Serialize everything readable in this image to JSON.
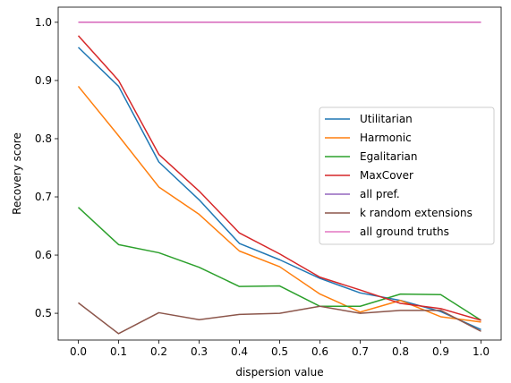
{
  "chart_data": {
    "type": "line",
    "xlabel": "dispersion value",
    "ylabel": "Recovery score",
    "xlim": [
      -0.05,
      1.05
    ],
    "ylim": [
      0.454,
      1.026
    ],
    "x_ticks": [
      "0.0",
      "0.1",
      "0.2",
      "0.3",
      "0.4",
      "0.5",
      "0.6",
      "0.7",
      "0.8",
      "0.9",
      "1.0"
    ],
    "y_ticks": [
      "0.5",
      "0.6",
      "0.7",
      "0.8",
      "0.9",
      "1.0"
    ],
    "legend_position": "center-right",
    "grid": false,
    "x": [
      0.0,
      0.1,
      0.2,
      0.3,
      0.4,
      0.5,
      0.6,
      0.7,
      0.8,
      0.9,
      1.0
    ],
    "series": [
      {
        "name": "Utilitarian",
        "color": "#1f77b4",
        "values": [
          0.957,
          0.89,
          0.76,
          0.695,
          0.62,
          0.592,
          0.56,
          0.535,
          0.522,
          0.503,
          0.472
        ]
      },
      {
        "name": "Harmonic",
        "color": "#ff7f0e",
        "values": [
          0.89,
          0.805,
          0.717,
          0.67,
          0.607,
          0.58,
          0.533,
          0.502,
          0.522,
          0.494,
          0.485
        ]
      },
      {
        "name": "Egalitarian",
        "color": "#2ca02c",
        "values": [
          0.682,
          0.618,
          0.604,
          0.579,
          0.546,
          0.547,
          0.512,
          0.512,
          0.533,
          0.532,
          0.488
        ]
      },
      {
        "name": "MaxCover",
        "color": "#d62728",
        "values": [
          0.977,
          0.9,
          0.773,
          0.71,
          0.638,
          0.602,
          0.562,
          0.54,
          0.517,
          0.508,
          0.488
        ]
      },
      {
        "name": "all pref.",
        "color": "#9467bd",
        "values": [
          1.0,
          1.0,
          1.0,
          1.0,
          1.0,
          1.0,
          1.0,
          1.0,
          1.0,
          1.0,
          1.0
        ]
      },
      {
        "name": "k random extensions",
        "color": "#8c564b",
        "values": [
          0.518,
          0.465,
          0.501,
          0.489,
          0.498,
          0.5,
          0.512,
          0.5,
          0.505,
          0.505,
          0.469
        ]
      },
      {
        "name": "all ground truths",
        "color": "#e377c2",
        "values": [
          1.0,
          1.0,
          1.0,
          1.0,
          1.0,
          1.0,
          1.0,
          1.0,
          1.0,
          1.0,
          1.0
        ]
      }
    ]
  }
}
